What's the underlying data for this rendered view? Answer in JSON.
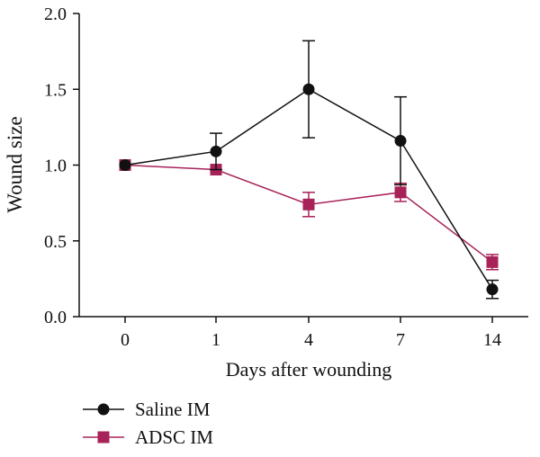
{
  "chart_data": {
    "type": "line",
    "title": "",
    "xlabel": "Days after wounding",
    "ylabel": "Wound size",
    "categories": [
      "0",
      "1",
      "4",
      "7",
      "14"
    ],
    "ylim": [
      0,
      2.0
    ],
    "yticks": [
      "0.0",
      "0.5",
      "1.0",
      "1.5",
      "2.0"
    ],
    "grid": false,
    "legend_position": "bottom-left",
    "series": [
      {
        "name": "Saline IM",
        "color": "#111111",
        "marker": "circle",
        "values": [
          1.0,
          1.09,
          1.5,
          1.16,
          0.18
        ],
        "error": [
          0.0,
          0.12,
          0.32,
          0.29,
          0.06
        ]
      },
      {
        "name": "ADSC IM",
        "color": "#a8225a",
        "marker": "square",
        "values": [
          1.0,
          0.97,
          0.74,
          0.82,
          0.36
        ],
        "error": [
          0.0,
          0.0,
          0.08,
          0.06,
          0.05
        ]
      }
    ]
  }
}
